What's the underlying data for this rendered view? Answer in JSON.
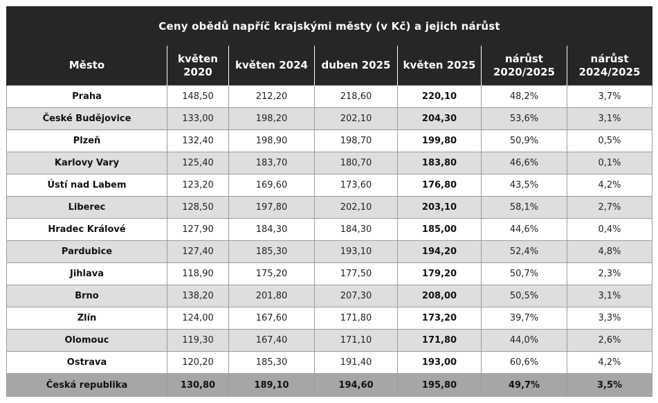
{
  "title": "Ceny obědů napříč krajskými městy (v Kč) a jejich nárůst",
  "headers": [
    [
      "Město"
    ],
    [
      "květen",
      "2020"
    ],
    [
      "květen 2024"
    ],
    [
      "duben 2025"
    ],
    [
      "květen 2025"
    ],
    [
      "nárůst",
      "2020/2025"
    ],
    [
      "nárůst",
      "2024/2025"
    ]
  ],
  "rows": [
    [
      "Praha",
      "148,50",
      "212,20",
      "218,60",
      "220,10",
      "48,2%",
      "3,7%"
    ],
    [
      "České Budějovice",
      "133,00",
      "198,20",
      "202,10",
      "204,30",
      "53,6%",
      "3,1%"
    ],
    [
      "Plzeň",
      "132,40",
      "198,90",
      "198,70",
      "199,80",
      "50,9%",
      "0,5%"
    ],
    [
      "Karlovy Vary",
      "125,40",
      "183,70",
      "180,70",
      "183,80",
      "46,6%",
      "0,1%"
    ],
    [
      "Ústí nad Labem",
      "123,20",
      "169,60",
      "173,60",
      "176,80",
      "43,5%",
      "4,2%"
    ],
    [
      "Liberec",
      "128,50",
      "197,80",
      "202,10",
      "203,10",
      "58,1%",
      "2,7%"
    ],
    [
      "Hradec Králové",
      "127,90",
      "184,30",
      "184,30",
      "185,00",
      "44,6%",
      "0,4%"
    ],
    [
      "Pardubice",
      "127,40",
      "185,30",
      "193,10",
      "194,20",
      "52,4%",
      "4,8%"
    ],
    [
      "Jihlava",
      "118,90",
      "175,20",
      "177,50",
      "179,20",
      "50,7%",
      "2,3%"
    ],
    [
      "Brno",
      "138,20",
      "201,80",
      "207,30",
      "208,00",
      "50,5%",
      "3,1%"
    ],
    [
      "Zlín",
      "124,00",
      "167,60",
      "171,80",
      "173,20",
      "39,7%",
      "3,3%"
    ],
    [
      "Olomouc",
      "119,30",
      "167,40",
      "171,10",
      "171,80",
      "44,0%",
      "2,6%"
    ],
    [
      "Ostrava",
      "120,20",
      "185,30",
      "191,40",
      "193,00",
      "60,6%",
      "4,2%"
    ]
  ],
  "total": [
    "Česká republika",
    "130,80",
    "189,10",
    "194,60",
    "195,80",
    "49,7%",
    "3,5%"
  ],
  "colors": {
    "header_bg": "#262626",
    "header_text": "#ffffff",
    "alt_row_bg": "#dedede",
    "total_row_bg": "#a6a6a6"
  }
}
